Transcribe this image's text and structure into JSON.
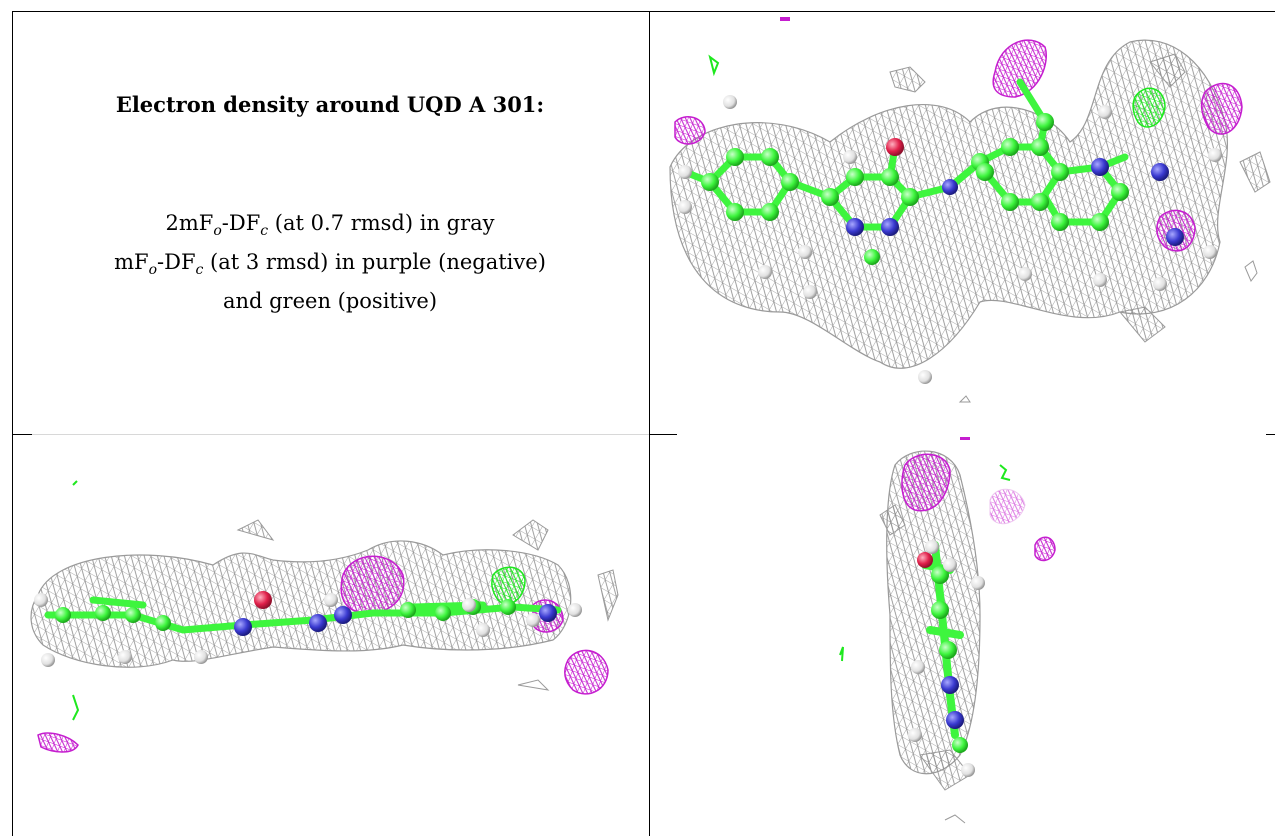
{
  "caption": {
    "title": "Electron density around UQD A 301:",
    "line1_prefix": "2mF",
    "line1_sub1": "o",
    "line1_mid": "-DF",
    "line1_sub2": "c",
    "line1_suffix": " (at 0.7 rmsd) in gray",
    "line2_prefix": "mF",
    "line2_sub1": "o",
    "line2_mid": "-DF",
    "line2_sub2": "c",
    "line2_suffix": " (at 3 rmsd) in purple (negative)",
    "line3": "and green (positive)"
  },
  "views": [
    {
      "name": "top-view",
      "orientation": "face-on"
    },
    {
      "name": "side-view",
      "orientation": "edge-on horizontal"
    },
    {
      "name": "end-view",
      "orientation": "edge-on vertical"
    }
  ],
  "colors": {
    "density_2fofc": "#9a9a9a",
    "density_negative": "#c51ecf",
    "density_positive": "#1ee81e",
    "carbon": "#3ef53e",
    "nitrogen": "#3a3ad0",
    "oxygen": "#e0204a",
    "hydrogen": "#e6e6e6"
  }
}
